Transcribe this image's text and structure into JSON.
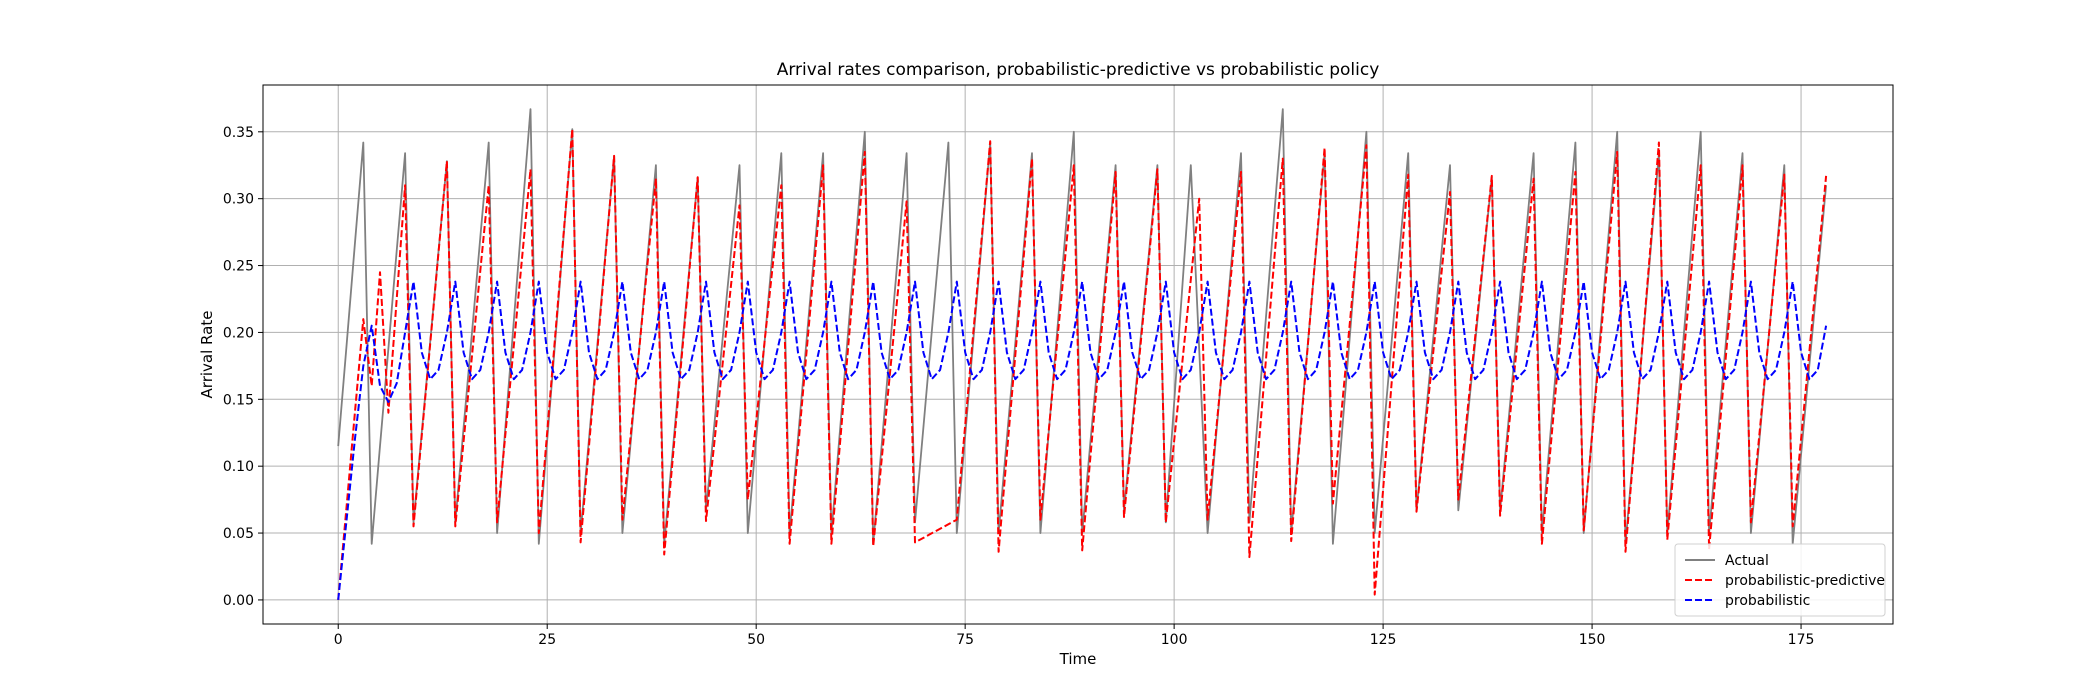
{
  "chart_data": {
    "type": "line",
    "title": "Arrival rates comparison, probabilistic-predictive vs probabilistic policy",
    "xlabel": "Time",
    "ylabel": "Arrival Rate",
    "xlim": [
      -9,
      186
    ],
    "ylim": [
      -0.018,
      0.385
    ],
    "xticks": [
      0,
      25,
      50,
      75,
      100,
      125,
      150,
      175
    ],
    "yticks": [
      0.0,
      0.05,
      0.1,
      0.15,
      0.2,
      0.25,
      0.3,
      0.35
    ],
    "ytick_labels": [
      "0.00",
      "0.05",
      "0.10",
      "0.15",
      "0.20",
      "0.25",
      "0.30",
      "0.35"
    ],
    "grid": true,
    "legend_position": "lower-right",
    "series": [
      {
        "name": "Actual",
        "color": "#808080",
        "style": "solid",
        "peaks": [
          [
            3,
            0.342
          ],
          [
            8,
            0.334
          ],
          [
            13,
            0.328
          ],
          [
            18,
            0.342
          ],
          [
            23,
            0.367
          ],
          [
            28,
            0.352
          ],
          [
            33,
            0.332
          ],
          [
            38,
            0.325
          ],
          [
            43,
            0.316
          ],
          [
            48,
            0.325
          ],
          [
            53,
            0.334
          ],
          [
            58,
            0.334
          ],
          [
            63,
            0.35
          ],
          [
            68,
            0.334
          ],
          [
            73,
            0.342
          ],
          [
            78,
            0.342
          ],
          [
            83,
            0.334
          ],
          [
            88,
            0.35
          ],
          [
            93,
            0.325
          ],
          [
            98,
            0.325
          ],
          [
            102,
            0.325
          ],
          [
            108,
            0.334
          ],
          [
            113,
            0.367
          ],
          [
            118,
            0.334
          ],
          [
            123,
            0.35
          ],
          [
            128,
            0.334
          ],
          [
            133,
            0.325
          ],
          [
            138,
            0.316
          ],
          [
            143,
            0.334
          ],
          [
            148,
            0.342
          ],
          [
            153,
            0.35
          ],
          [
            158,
            0.334
          ],
          [
            163,
            0.35
          ],
          [
            168,
            0.334
          ],
          [
            173,
            0.325
          ]
        ],
        "troughs": [
          [
            4,
            0.042
          ],
          [
            9,
            0.058
          ],
          [
            14,
            0.058
          ],
          [
            19,
            0.05
          ],
          [
            24,
            0.042
          ],
          [
            29,
            0.05
          ],
          [
            34,
            0.05
          ],
          [
            39,
            0.042
          ],
          [
            44,
            0.067
          ],
          [
            49,
            0.05
          ],
          [
            54,
            0.05
          ],
          [
            59,
            0.05
          ],
          [
            64,
            0.042
          ],
          [
            69,
            0.058
          ],
          [
            74,
            0.05
          ],
          [
            79,
            0.05
          ],
          [
            84,
            0.05
          ],
          [
            89,
            0.05
          ],
          [
            94,
            0.067
          ],
          [
            99,
            0.058
          ],
          [
            104,
            0.05
          ],
          [
            109,
            0.058
          ],
          [
            114,
            0.05
          ],
          [
            119,
            0.042
          ],
          [
            124,
            0.05
          ],
          [
            129,
            0.067
          ],
          [
            134,
            0.067
          ],
          [
            139,
            0.067
          ],
          [
            144,
            0.05
          ],
          [
            149,
            0.05
          ],
          [
            154,
            0.042
          ],
          [
            159,
            0.05
          ],
          [
            164,
            0.05
          ],
          [
            169,
            0.05
          ],
          [
            174,
            0.042
          ]
        ],
        "start": [
          0,
          0.115
        ],
        "end": [
          178,
          0.31
        ]
      },
      {
        "name": "probabilistic-predictive",
        "color": "#ff0000",
        "style": "dashed",
        "peaks": [
          [
            3,
            0.21
          ],
          [
            5,
            0.245
          ],
          [
            8,
            0.31
          ],
          [
            13,
            0.328
          ],
          [
            18,
            0.31
          ],
          [
            23,
            0.322
          ],
          [
            28,
            0.352
          ],
          [
            33,
            0.332
          ],
          [
            38,
            0.315
          ],
          [
            43,
            0.316
          ],
          [
            48,
            0.295
          ],
          [
            53,
            0.31
          ],
          [
            58,
            0.325
          ],
          [
            63,
            0.335
          ],
          [
            68,
            0.298
          ],
          [
            78,
            0.343
          ],
          [
            83,
            0.33
          ],
          [
            88,
            0.325
          ],
          [
            93,
            0.32
          ],
          [
            98,
            0.322
          ],
          [
            103,
            0.3
          ],
          [
            108,
            0.32
          ],
          [
            113,
            0.33
          ],
          [
            118,
            0.338
          ],
          [
            123,
            0.34
          ],
          [
            128,
            0.318
          ],
          [
            133,
            0.305
          ],
          [
            138,
            0.317
          ],
          [
            143,
            0.315
          ],
          [
            148,
            0.32
          ],
          [
            153,
            0.335
          ],
          [
            158,
            0.342
          ],
          [
            163,
            0.325
          ],
          [
            168,
            0.325
          ],
          [
            173,
            0.318
          ]
        ],
        "troughs": [
          [
            0,
            0.0
          ],
          [
            4,
            0.16
          ],
          [
            6,
            0.14
          ],
          [
            9,
            0.055
          ],
          [
            14,
            0.055
          ],
          [
            19,
            0.058
          ],
          [
            24,
            0.05
          ],
          [
            29,
            0.043
          ],
          [
            34,
            0.06
          ],
          [
            39,
            0.034
          ],
          [
            44,
            0.059
          ],
          [
            49,
            0.075
          ],
          [
            54,
            0.042
          ],
          [
            59,
            0.042
          ],
          [
            64,
            0.04
          ],
          [
            69,
            0.043
          ],
          [
            74,
            0.06
          ],
          [
            79,
            0.036
          ],
          [
            84,
            0.06
          ],
          [
            89,
            0.037
          ],
          [
            94,
            0.062
          ],
          [
            99,
            0.058
          ],
          [
            104,
            0.06
          ],
          [
            109,
            0.032
          ],
          [
            114,
            0.044
          ],
          [
            119,
            0.072
          ],
          [
            124,
            0.004
          ],
          [
            129,
            0.066
          ],
          [
            134,
            0.075
          ],
          [
            139,
            0.063
          ],
          [
            144,
            0.042
          ],
          [
            149,
            0.052
          ],
          [
            154,
            0.036
          ],
          [
            159,
            0.045
          ],
          [
            164,
            0.038
          ],
          [
            169,
            0.058
          ],
          [
            174,
            0.055
          ]
        ],
        "end": [
          178,
          0.317
        ]
      },
      {
        "name": "probabilistic",
        "color": "#0000ff",
        "style": "dashed",
        "period": 5,
        "peak_value": 0.238,
        "trough_value": 0.165,
        "start": [
          0,
          0.0
        ],
        "end": [
          178,
          0.205
        ]
      }
    ]
  }
}
